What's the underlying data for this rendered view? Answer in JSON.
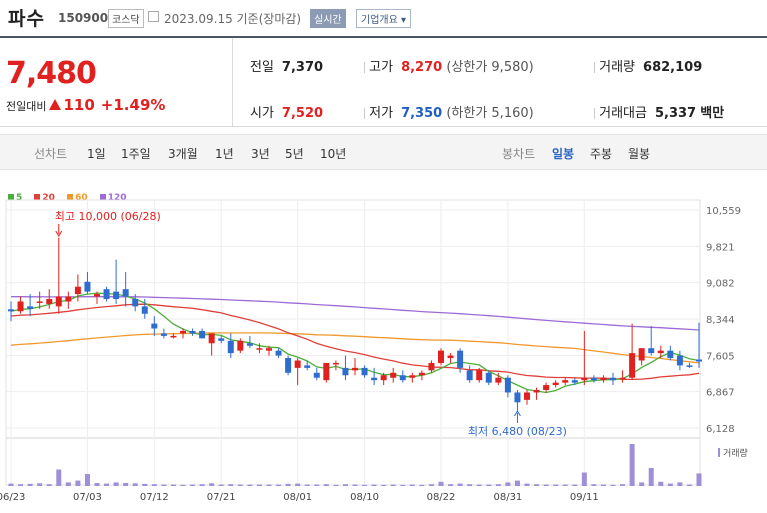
{
  "header": {
    "stock_name": "파수",
    "stock_code": "150900",
    "market_badge": "코스닥",
    "date_text": "2023.09.15  기준(장마감)",
    "realtime_button": "실시간",
    "overview_button": "기업개요 ▾"
  },
  "quote": {
    "price": "7,480",
    "change_label": "전일대비",
    "change_value": "110",
    "change_pct": "+1.49%",
    "prev_close_label": "전일",
    "prev_close": "7,370",
    "open_label": "시가",
    "open": "7,520",
    "high_label": "고가",
    "high": "8,270",
    "upper_limit": "(상한가 9,580)",
    "low_label": "저가",
    "low": "7,350",
    "lower_limit": "(하한가 5,160)",
    "volume_label": "거래량",
    "volume": "682,109",
    "amount_label": "거래대금",
    "amount": "5,337",
    "amount_unit": "백만"
  },
  "period_tabs": {
    "label": "선차트",
    "items": [
      "1일",
      "1주일",
      "3개월",
      "1년",
      "3년",
      "5년",
      "10년"
    ]
  },
  "candle_tabs": {
    "label": "봉차트",
    "items": [
      "일봉",
      "주봉",
      "월봉"
    ],
    "selected": "일봉"
  },
  "colors": {
    "up": "#e0211f",
    "down": "#2f6ccf",
    "ma5": "#4caf3a",
    "ma20": "#e0403a",
    "ma60": "#f09a2e",
    "ma120": "#9d6bd6",
    "volume": "#9f8fd6"
  },
  "chart_data": {
    "type": "candlestick",
    "legend": [
      "5",
      "20",
      "60",
      "120"
    ],
    "y_ticks": [
      "10,559",
      "9,821",
      "9,082",
      "8,344",
      "7,605",
      "6,867",
      "6,128"
    ],
    "ylim": [
      6128,
      10559
    ],
    "x_ticks": [
      "06/23",
      "07/03",
      "07/12",
      "07/21",
      "08/01",
      "08/10",
      "08/22",
      "08/31",
      "09/11"
    ],
    "max_annotation": "최고 10,000 (06/28)",
    "min_annotation": "최저 6,480 (08/23)",
    "volume_label": "거래량",
    "candles": [
      {
        "o": 8540,
        "h": 8700,
        "l": 8300,
        "c": 8500
      },
      {
        "o": 8500,
        "h": 8800,
        "l": 8450,
        "c": 8700
      },
      {
        "o": 8600,
        "h": 8850,
        "l": 8400,
        "c": 8550
      },
      {
        "o": 8700,
        "h": 8900,
        "l": 8550,
        "c": 8700
      },
      {
        "o": 8650,
        "h": 8950,
        "l": 8550,
        "c": 8750
      },
      {
        "o": 8600,
        "h": 10000,
        "l": 8450,
        "c": 8800
      },
      {
        "o": 8700,
        "h": 8900,
        "l": 8550,
        "c": 8800
      },
      {
        "o": 8850,
        "h": 9250,
        "l": 8700,
        "c": 9000
      },
      {
        "o": 9100,
        "h": 9300,
        "l": 8850,
        "c": 8900
      },
      {
        "o": 8800,
        "h": 8900,
        "l": 8650,
        "c": 8850
      },
      {
        "o": 8950,
        "h": 9000,
        "l": 8700,
        "c": 8750
      },
      {
        "o": 8900,
        "h": 9550,
        "l": 8650,
        "c": 8750
      },
      {
        "o": 8950,
        "h": 9300,
        "l": 8600,
        "c": 8800
      },
      {
        "o": 8750,
        "h": 8850,
        "l": 8500,
        "c": 8600
      },
      {
        "o": 8600,
        "h": 8750,
        "l": 8350,
        "c": 8450
      },
      {
        "o": 8250,
        "h": 8400,
        "l": 8000,
        "c": 8150
      },
      {
        "o": 8050,
        "h": 8150,
        "l": 7950,
        "c": 8000
      },
      {
        "o": 8000,
        "h": 8050,
        "l": 7950,
        "c": 8000
      },
      {
        "o": 8050,
        "h": 8150,
        "l": 7950,
        "c": 8100
      },
      {
        "o": 8100,
        "h": 8150,
        "l": 8000,
        "c": 8050
      },
      {
        "o": 8100,
        "h": 8150,
        "l": 7950,
        "c": 7950
      },
      {
        "o": 7850,
        "h": 8050,
        "l": 7600,
        "c": 8050
      },
      {
        "o": 7950,
        "h": 8000,
        "l": 7850,
        "c": 7900
      },
      {
        "o": 7900,
        "h": 8050,
        "l": 7550,
        "c": 7650
      },
      {
        "o": 7700,
        "h": 7950,
        "l": 7650,
        "c": 7900
      },
      {
        "o": 7850,
        "h": 8000,
        "l": 7750,
        "c": 7800
      },
      {
        "o": 7750,
        "h": 7850,
        "l": 7650,
        "c": 7750
      },
      {
        "o": 7700,
        "h": 7800,
        "l": 7600,
        "c": 7750
      },
      {
        "o": 7700,
        "h": 7750,
        "l": 7550,
        "c": 7600
      },
      {
        "o": 7550,
        "h": 7600,
        "l": 7200,
        "c": 7250
      },
      {
        "o": 7350,
        "h": 7550,
        "l": 7000,
        "c": 7500
      },
      {
        "o": 7400,
        "h": 7500,
        "l": 7300,
        "c": 7350
      },
      {
        "o": 7250,
        "h": 7350,
        "l": 7100,
        "c": 7150
      },
      {
        "o": 7100,
        "h": 7450,
        "l": 7050,
        "c": 7450
      },
      {
        "o": 7450,
        "h": 7500,
        "l": 7300,
        "c": 7450
      },
      {
        "o": 7350,
        "h": 7600,
        "l": 7100,
        "c": 7200
      },
      {
        "o": 7300,
        "h": 7550,
        "l": 7200,
        "c": 7350
      },
      {
        "o": 7350,
        "h": 7400,
        "l": 7150,
        "c": 7200
      },
      {
        "o": 7150,
        "h": 7350,
        "l": 7000,
        "c": 7100
      },
      {
        "o": 7100,
        "h": 7250,
        "l": 7000,
        "c": 7200
      },
      {
        "o": 7150,
        "h": 7350,
        "l": 7050,
        "c": 7250
      },
      {
        "o": 7200,
        "h": 7300,
        "l": 7050,
        "c": 7100
      },
      {
        "o": 7150,
        "h": 7250,
        "l": 7050,
        "c": 7200
      },
      {
        "o": 7200,
        "h": 7300,
        "l": 7100,
        "c": 7250
      },
      {
        "o": 7300,
        "h": 7500,
        "l": 7250,
        "c": 7450
      },
      {
        "o": 7450,
        "h": 7750,
        "l": 7400,
        "c": 7700
      },
      {
        "o": 7550,
        "h": 7650,
        "l": 7450,
        "c": 7600
      },
      {
        "o": 7700,
        "h": 7750,
        "l": 7250,
        "c": 7350
      },
      {
        "o": 7300,
        "h": 7400,
        "l": 7050,
        "c": 7100
      },
      {
        "o": 7100,
        "h": 7350,
        "l": 7050,
        "c": 7300
      },
      {
        "o": 7250,
        "h": 7300,
        "l": 7000,
        "c": 7050
      },
      {
        "o": 7050,
        "h": 7250,
        "l": 7000,
        "c": 7150
      },
      {
        "o": 7150,
        "h": 7200,
        "l": 6750,
        "c": 6850
      },
      {
        "o": 6850,
        "h": 6900,
        "l": 6480,
        "c": 6650
      },
      {
        "o": 6700,
        "h": 6900,
        "l": 6600,
        "c": 6850
      },
      {
        "o": 6850,
        "h": 6950,
        "l": 6700,
        "c": 6900
      },
      {
        "o": 6900,
        "h": 7050,
        "l": 6850,
        "c": 7000
      },
      {
        "o": 7000,
        "h": 7100,
        "l": 6950,
        "c": 7050
      },
      {
        "o": 7050,
        "h": 7150,
        "l": 7000,
        "c": 7100
      },
      {
        "o": 7100,
        "h": 7150,
        "l": 7000,
        "c": 7050
      },
      {
        "o": 7100,
        "h": 8100,
        "l": 7000,
        "c": 7150
      },
      {
        "o": 7150,
        "h": 7200,
        "l": 7050,
        "c": 7100
      },
      {
        "o": 7100,
        "h": 7200,
        "l": 7050,
        "c": 7150
      },
      {
        "o": 7150,
        "h": 7250,
        "l": 7000,
        "c": 7100
      },
      {
        "o": 7150,
        "h": 7300,
        "l": 7050,
        "c": 7150
      },
      {
        "o": 7150,
        "h": 8250,
        "l": 7100,
        "c": 7650
      },
      {
        "o": 7500,
        "h": 7750,
        "l": 7400,
        "c": 7750
      },
      {
        "o": 7750,
        "h": 8200,
        "l": 7600,
        "c": 7650
      },
      {
        "o": 7650,
        "h": 7800,
        "l": 7550,
        "c": 7700
      },
      {
        "o": 7700,
        "h": 7800,
        "l": 7500,
        "c": 7550
      },
      {
        "o": 7600,
        "h": 7700,
        "l": 7300,
        "c": 7400
      },
      {
        "o": 7400,
        "h": 7450,
        "l": 7350,
        "c": 7370
      },
      {
        "o": 7520,
        "h": 8270,
        "l": 7350,
        "c": 7480
      }
    ],
    "volumes": [
      8,
      6,
      7,
      9,
      6,
      55,
      12,
      18,
      40,
      10,
      8,
      12,
      10,
      9,
      7,
      6,
      5,
      5,
      4,
      5,
      6,
      9,
      5,
      6,
      5,
      5,
      5,
      5,
      5,
      7,
      8,
      5,
      5,
      6,
      4,
      6,
      5,
      4,
      5,
      4,
      5,
      4,
      5,
      4,
      6,
      14,
      6,
      8,
      6,
      5,
      5,
      6,
      12,
      18,
      8,
      6,
      5,
      5,
      5,
      5,
      45,
      6,
      5,
      4,
      6,
      140,
      12,
      60,
      14,
      8,
      12,
      5,
      42
    ]
  }
}
